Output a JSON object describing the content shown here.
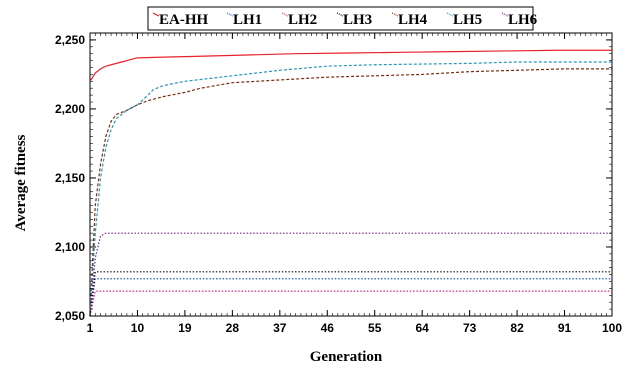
{
  "chart_data": {
    "type": "line",
    "title": "",
    "xlabel": "Generation",
    "ylabel": "Average fitness",
    "xlim": [
      1,
      100
    ],
    "ylim": [
      2050,
      2255
    ],
    "xticks": [
      1,
      10,
      19,
      28,
      37,
      46,
      55,
      64,
      73,
      82,
      91,
      100
    ],
    "yticks": [
      2050,
      2100,
      2150,
      2200,
      2250
    ],
    "ytick_labels": [
      "2,050",
      "2,100",
      "2,150",
      "2,200",
      "2,250"
    ],
    "grid": false,
    "legend_position": "top",
    "series": [
      {
        "name": "EA-HH",
        "color": "#e8222a",
        "dash": "solid",
        "points": [
          [
            1,
            2220
          ],
          [
            2,
            2226
          ],
          [
            3,
            2229
          ],
          [
            4,
            2231
          ],
          [
            5,
            2232
          ],
          [
            7,
            2234
          ],
          [
            9,
            2236
          ],
          [
            10,
            2237
          ],
          [
            15,
            2237.5
          ],
          [
            20,
            2238
          ],
          [
            30,
            2239
          ],
          [
            40,
            2240
          ],
          [
            50,
            2240.5
          ],
          [
            60,
            2241
          ],
          [
            70,
            2241.5
          ],
          [
            80,
            2242
          ],
          [
            90,
            2242.5
          ],
          [
            100,
            2242.5
          ]
        ]
      },
      {
        "name": "LH1",
        "color": "#1f5fbf",
        "dash": "dotted",
        "points": [
          [
            1,
            2050
          ],
          [
            2,
            2077
          ],
          [
            100,
            2077
          ]
        ]
      },
      {
        "name": "LH2",
        "color": "#e0208a",
        "dash": "dotted",
        "points": [
          [
            1,
            2050
          ],
          [
            2,
            2068
          ],
          [
            100,
            2068
          ]
        ]
      },
      {
        "name": "LH3",
        "color": "#111111",
        "dash": "dotted",
        "points": [
          [
            1,
            2050
          ],
          [
            2,
            2082
          ],
          [
            100,
            2082
          ]
        ]
      },
      {
        "name": "LH4",
        "color": "#7a2d0e",
        "dash": "dashed",
        "points": [
          [
            1,
            2050
          ],
          [
            2,
            2130
          ],
          [
            3,
            2160
          ],
          [
            4,
            2180
          ],
          [
            5,
            2191
          ],
          [
            6,
            2196
          ],
          [
            8,
            2199
          ],
          [
            10,
            2203
          ],
          [
            12,
            2206
          ],
          [
            15,
            2209
          ],
          [
            19,
            2212
          ],
          [
            22,
            2215
          ],
          [
            28,
            2219
          ],
          [
            37,
            2221
          ],
          [
            46,
            2223
          ],
          [
            55,
            2224
          ],
          [
            64,
            2225
          ],
          [
            73,
            2227
          ],
          [
            82,
            2228
          ],
          [
            91,
            2229
          ],
          [
            100,
            2229
          ]
        ]
      },
      {
        "name": "LH5",
        "color": "#2a97b8",
        "dash": "dashed",
        "points": [
          [
            1,
            2050
          ],
          [
            2,
            2110
          ],
          [
            3,
            2150
          ],
          [
            4,
            2172
          ],
          [
            5,
            2185
          ],
          [
            6,
            2193
          ],
          [
            8,
            2199
          ],
          [
            10,
            2203
          ],
          [
            12,
            2210
          ],
          [
            13,
            2214
          ],
          [
            15,
            2217
          ],
          [
            19,
            2220
          ],
          [
            28,
            2224
          ],
          [
            37,
            2228
          ],
          [
            46,
            2231
          ],
          [
            55,
            2232
          ],
          [
            64,
            2232.5
          ],
          [
            73,
            2233
          ],
          [
            82,
            2234
          ],
          [
            91,
            2234
          ],
          [
            100,
            2234
          ]
        ]
      },
      {
        "name": "LH6",
        "color": "#7a1f8a",
        "dash": "dotted",
        "points": [
          [
            1,
            2050
          ],
          [
            2,
            2092
          ],
          [
            3,
            2108
          ],
          [
            4,
            2110
          ],
          [
            100,
            2110
          ]
        ]
      }
    ]
  },
  "colors": {
    "frame": "#000000",
    "background": "#ffffff"
  }
}
